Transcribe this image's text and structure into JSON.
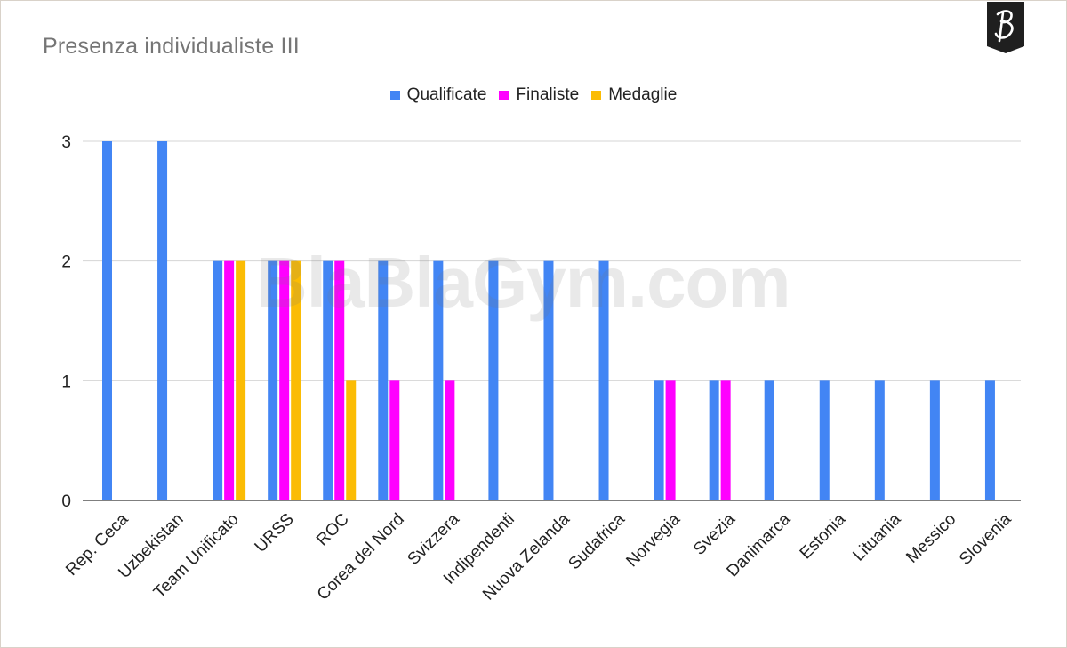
{
  "chart_data": {
    "type": "bar",
    "title": "Presenza individualiste III",
    "watermark": "BlaBlaGym.com",
    "logo_icon": "blablagym-logo-icon",
    "legend_position": "top",
    "grid": true,
    "ylim": [
      0,
      3
    ],
    "yticks": [
      0,
      1,
      2,
      3
    ],
    "categories": [
      "Rep. Ceca",
      "Uzbekistan",
      "Team Unificato",
      "URSS",
      "ROC",
      "Corea del Nord",
      "Svizzera",
      "Indipendenti",
      "Nuova Zelanda",
      "Sudafrica",
      "Norvegia",
      "Svezia",
      "Danimarca",
      "Estonia",
      "Lituania",
      "Messico",
      "Slovenia"
    ],
    "series": [
      {
        "name": "Qualificate",
        "color": "#4285f4",
        "values": [
          3,
          3,
          2,
          2,
          2,
          2,
          2,
          2,
          2,
          2,
          1,
          1,
          1,
          1,
          1,
          1,
          1
        ]
      },
      {
        "name": "Finaliste",
        "color": "#ff00ff",
        "values": [
          0,
          0,
          2,
          2,
          2,
          1,
          1,
          0,
          0,
          0,
          1,
          1,
          0,
          0,
          0,
          0,
          0
        ]
      },
      {
        "name": "Medaglie",
        "color": "#fbbc04",
        "values": [
          0,
          0,
          2,
          2,
          1,
          0,
          0,
          0,
          0,
          0,
          0,
          0,
          0,
          0,
          0,
          0,
          0
        ]
      }
    ]
  }
}
